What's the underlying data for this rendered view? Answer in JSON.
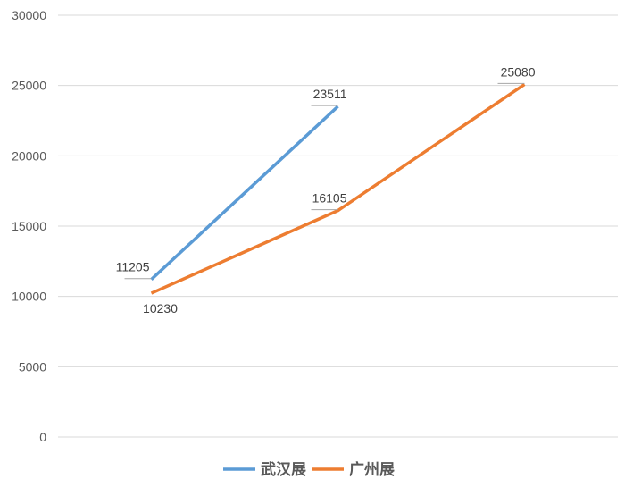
{
  "chart_data": {
    "type": "line",
    "title": "",
    "xlabel": "",
    "ylabel": "",
    "categories": [
      "",
      "",
      ""
    ],
    "ylim": [
      0,
      30000
    ],
    "yticks": [
      0,
      5000,
      10000,
      15000,
      20000,
      25000,
      30000
    ],
    "grid": true,
    "legend_position": "bottom",
    "series": [
      {
        "name": "武汉展",
        "color": "#5b9bd5",
        "values": [
          11205,
          23511,
          null
        ]
      },
      {
        "name": "广州展",
        "color": "#ed7d31",
        "values": [
          10230,
          16105,
          25080
        ]
      }
    ],
    "data_labels": true
  }
}
